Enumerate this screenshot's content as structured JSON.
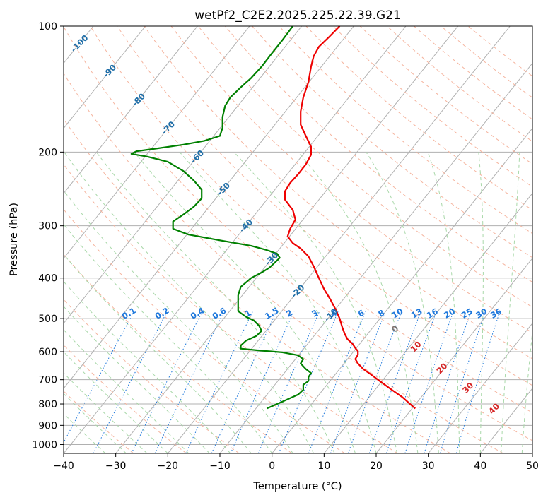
{
  "chart_data": {
    "type": "line",
    "title": "wetPf2_C2E2.2025.225.22.39.G21",
    "xlabel": "Temperature (°C)",
    "ylabel": "Pressure (hPa)",
    "xlim": [
      -40,
      50
    ],
    "ylim": [
      1050,
      100
    ],
    "y_scale": "log",
    "x_ticks": [
      "−40",
      "−30",
      "−20",
      "−10",
      "0",
      "10",
      "20",
      "30",
      "40",
      "50"
    ],
    "y_ticks": [
      "100",
      "200",
      "300",
      "400",
      "500",
      "600",
      "700",
      "800",
      "900",
      "1000"
    ],
    "y_tick_values": [
      100,
      200,
      300,
      400,
      500,
      600,
      700,
      800,
      900,
      1000
    ],
    "series": [
      {
        "color": "#ee0000",
        "points": [
          [
            27.5,
            820
          ],
          [
            26.5,
            800
          ],
          [
            25,
            770
          ],
          [
            23,
            740
          ],
          [
            21,
            710
          ],
          [
            19,
            680
          ],
          [
            17.5,
            660
          ],
          [
            16.5,
            640
          ],
          [
            16,
            625
          ],
          [
            16.5,
            610
          ],
          [
            16.5,
            598
          ],
          [
            16,
            588
          ],
          [
            15.5,
            575
          ],
          [
            14.5,
            560
          ],
          [
            14,
            545
          ],
          [
            13.5,
            525
          ],
          [
            13,
            500
          ],
          [
            12.2,
            475
          ],
          [
            11.2,
            450
          ],
          [
            10,
            425
          ],
          [
            9,
            400
          ],
          [
            8,
            375
          ],
          [
            7,
            355
          ],
          [
            5.5,
            340
          ],
          [
            4,
            330
          ],
          [
            3,
            318
          ],
          [
            3.5,
            305
          ],
          [
            4.5,
            290
          ],
          [
            4,
            275
          ],
          [
            2.5,
            260
          ],
          [
            2.5,
            248
          ],
          [
            3.5,
            237
          ],
          [
            5,
            226
          ],
          [
            6.5,
            214
          ],
          [
            7.5,
            203
          ],
          [
            7.5,
            194
          ],
          [
            6.5,
            183
          ],
          [
            5.5,
            172
          ],
          [
            5.5,
            160
          ],
          [
            6,
            148
          ],
          [
            7,
            136
          ],
          [
            7.5,
            125
          ],
          [
            8,
            118
          ],
          [
            9,
            112
          ],
          [
            11,
            106
          ],
          [
            13,
            100
          ]
        ]
      },
      {
        "color": "#008000",
        "points": [
          [
            -1,
            820
          ],
          [
            2,
            790
          ],
          [
            5,
            760
          ],
          [
            6,
            740
          ],
          [
            6,
            720
          ],
          [
            7,
            705
          ],
          [
            7,
            690
          ],
          [
            7.5,
            675
          ],
          [
            6.5,
            660
          ],
          [
            6,
            650
          ],
          [
            5.5,
            640
          ],
          [
            6,
            625
          ],
          [
            5,
            612
          ],
          [
            2,
            602
          ],
          [
            -3,
            595
          ],
          [
            -6,
            590
          ],
          [
            -6,
            580
          ],
          [
            -5,
            565
          ],
          [
            -3,
            550
          ],
          [
            -2,
            535
          ],
          [
            -2.5,
            520
          ],
          [
            -3.5,
            505
          ],
          [
            -5,
            495
          ],
          [
            -6.5,
            480
          ],
          [
            -6.5,
            460
          ],
          [
            -6.5,
            440
          ],
          [
            -6,
            420
          ],
          [
            -4,
            400
          ],
          [
            -2,
            388
          ],
          [
            -0.5,
            378
          ],
          [
            0.5,
            368
          ],
          [
            1.5,
            358
          ],
          [
            1,
            350
          ],
          [
            -1,
            343
          ],
          [
            -4,
            335
          ],
          [
            -10,
            325
          ],
          [
            -16,
            315
          ],
          [
            -19,
            305
          ],
          [
            -19,
            293
          ],
          [
            -17,
            282
          ],
          [
            -15,
            270
          ],
          [
            -13.5,
            258
          ],
          [
            -13.5,
            246
          ],
          [
            -15,
            234
          ],
          [
            -17,
            222
          ],
          [
            -20,
            211
          ],
          [
            -24,
            205
          ],
          [
            -27,
            202
          ],
          [
            -26,
            199
          ],
          [
            -22,
            196
          ],
          [
            -17,
            192
          ],
          [
            -13,
            188
          ],
          [
            -10,
            183
          ],
          [
            -9.5,
            175
          ],
          [
            -9.5,
            165
          ],
          [
            -9,
            155
          ],
          [
            -8,
            148
          ],
          [
            -6,
            140
          ],
          [
            -4,
            133
          ],
          [
            -2,
            125
          ],
          [
            0,
            116
          ],
          [
            2,
            108
          ],
          [
            4,
            100
          ]
        ]
      }
    ],
    "dry_adiabat_labels": [
      "-100",
      "-90",
      "-80",
      "-70",
      "-60",
      "-50",
      "-40",
      "-30",
      "-20",
      "-10"
    ],
    "moist_adiabat_labels": [
      "0",
      "10",
      "20",
      "30",
      "40"
    ],
    "mixing_ratio_labels": [
      "0.1",
      "0.2",
      "0.4",
      "0.6",
      "1",
      "1.5",
      "2",
      "3",
      "4",
      "6",
      "8",
      "10",
      "13",
      "16",
      "20",
      "25",
      "30",
      "36"
    ],
    "grid": true,
    "legend": "none",
    "colors": {
      "temperature": "#ee0000",
      "dewpoint": "#008000",
      "dry_adiabat": "#f5b49e",
      "moist_adiabat": "#a9d8a9",
      "mixing_ratio": "#1e78dc",
      "dry_label": "#1f6ea8",
      "moist_label": "#d62728",
      "grid": "#b0b0b0"
    }
  }
}
